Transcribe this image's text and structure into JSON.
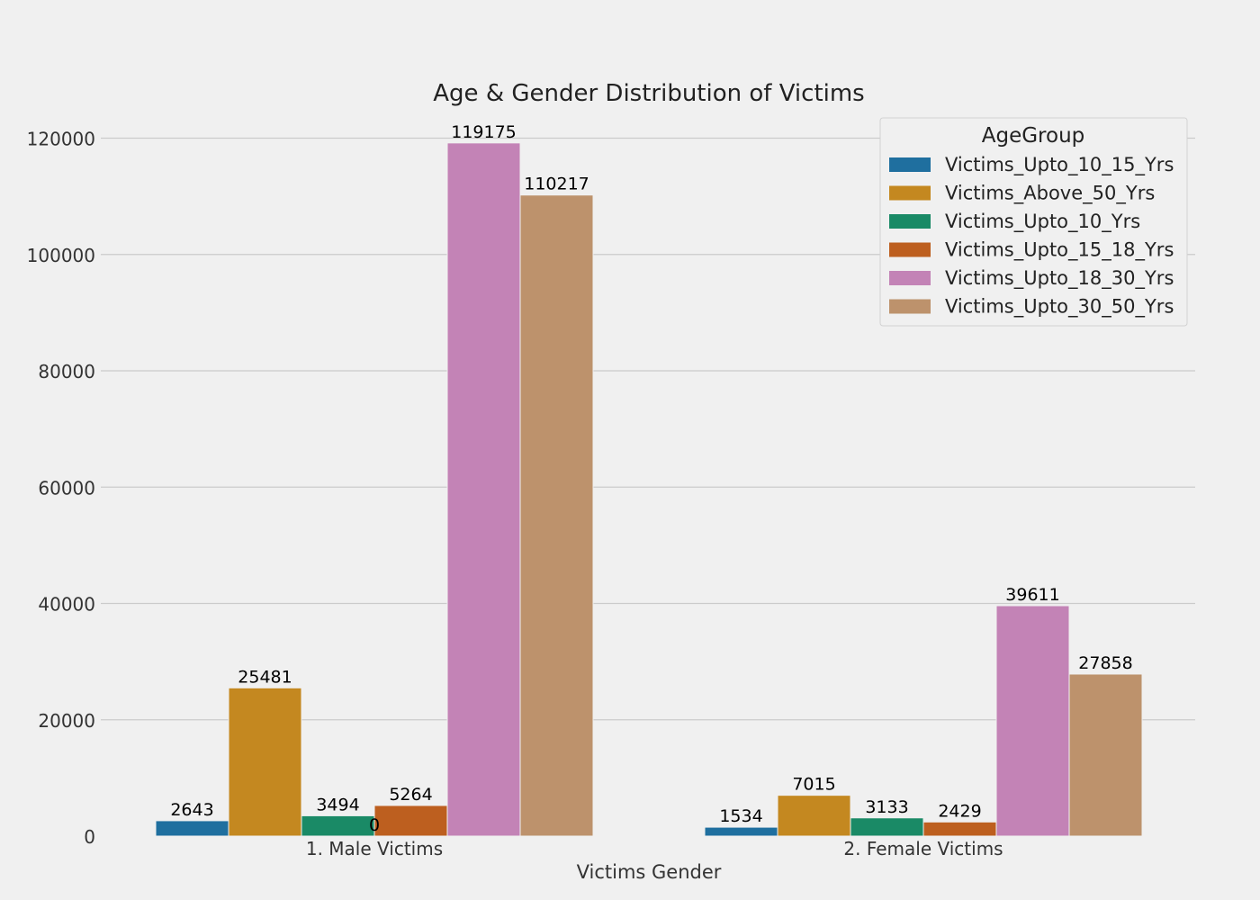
{
  "chart_data": {
    "type": "bar",
    "title": "Age & Gender Distribution of Victims",
    "xlabel": "Victims Gender",
    "ylabel": "",
    "categories": [
      "1. Male Victims",
      "2. Female Victims"
    ],
    "ylim": [
      0,
      125000
    ],
    "yticks": [
      0,
      20000,
      40000,
      60000,
      80000,
      100000,
      120000
    ],
    "grid": "horizontal",
    "legend": {
      "title": "AgeGroup",
      "placement": "top-right"
    },
    "series": [
      {
        "name": "Victims_Upto_10_15_Yrs",
        "color": "#1f6f9f",
        "values": [
          2643,
          1534
        ]
      },
      {
        "name": "Victims_Above_50_Yrs",
        "color": "#c48820",
        "values": [
          25481,
          7015
        ]
      },
      {
        "name": "Victims_Upto_10_Yrs",
        "color": "#1a8a66",
        "values": [
          3494,
          3133
        ]
      },
      {
        "name": "Victims_Upto_15_18_Yrs",
        "color": "#bd5f1f",
        "values": [
          5264,
          2429
        ]
      },
      {
        "name": "Victims_Upto_18_30_Yrs",
        "color": "#c383b6",
        "values": [
          119175,
          39611
        ]
      },
      {
        "name": "Victims_Upto_30_50_Yrs",
        "color": "#bd926c",
        "values": [
          110217,
          27858
        ]
      }
    ],
    "annotations": [
      {
        "text": "0",
        "category": "1. Male Victims",
        "between_series": [
          2,
          3
        ]
      }
    ]
  }
}
